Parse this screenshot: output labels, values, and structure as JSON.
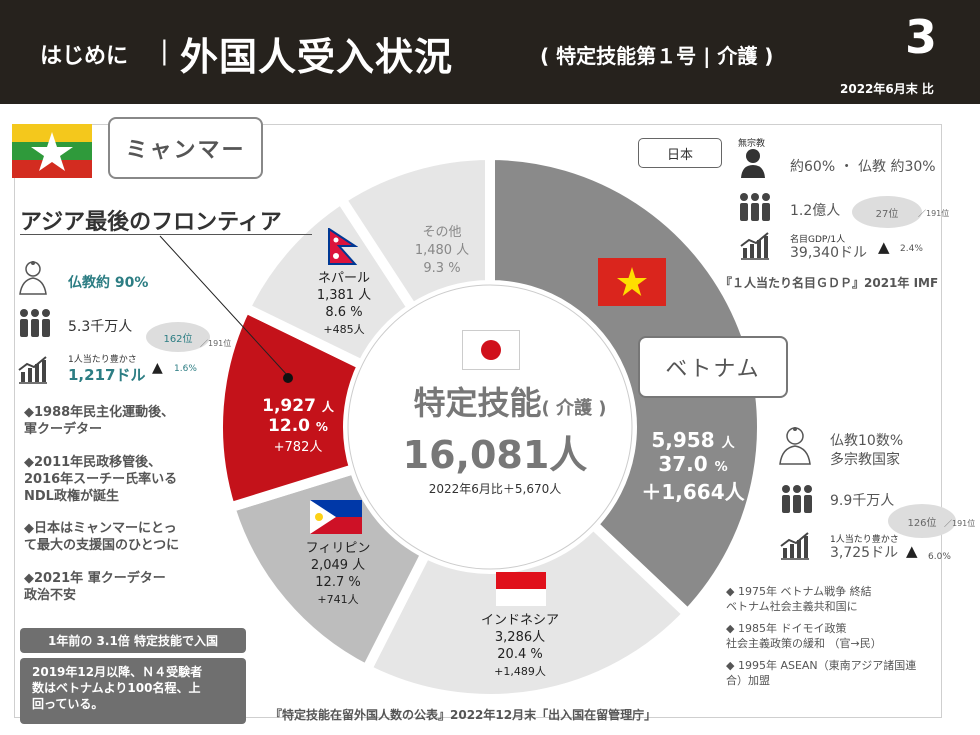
{
  "header": {
    "intro": "はじめに",
    "bar": "|",
    "title": "外国人受入状況",
    "subtitle": "( 特定技能第１号 | 介護 )",
    "page_number": "3",
    "date": "2022年6月末 比"
  },
  "myanmar": {
    "label": "ミャンマー",
    "frontier": "アジア最後のフロンティア",
    "religion": "仏教約 90%",
    "population": "5.3千万人",
    "gdp_label": "1人当たり豊かさ",
    "gdp_value": "1,217ドル",
    "rank": "162位",
    "rank_total": "／191位",
    "growth": "1.6%",
    "bullets": [
      "◆1988年民主化運動後、",
      "軍クーデター",
      "◆2011年民政移管後、",
      "2016年スーチー氏率いる",
      "NDL政権が誕生",
      "◆日本はミャンマーにとっ",
      "て最大の支援国のひとつに",
      "◆2021年 軍クーデター",
      "政治不安"
    ],
    "note1": "1年前の 3.1倍 特定技能で入国",
    "note2_l1": "2019年12月以降、Ｎ４受験者",
    "note2_l2": "数はベトナムより100名程、上",
    "note2_l3": "回っている。"
  },
  "center": {
    "title": "特定技能",
    "title_suffix": "( 介護 )",
    "total": "16,081人",
    "change": "2022年6月比＋5,670人"
  },
  "japan": {
    "label": "日本",
    "religion_head": "無宗教",
    "religion": "約60% ・ 仏教 約30%",
    "population": "1.2億人",
    "rank": "27位",
    "rank_total": "／191位",
    "gdp_label": "名目GDP/1人",
    "gdp_value": "39,340ドル",
    "growth": "2.4%",
    "source": "『１人当たり名目ＧＤＰ』2021年 IMF"
  },
  "vietnam": {
    "label": "ベトナム",
    "religion_l1": "仏教10数%",
    "religion_l2": "多宗教国家",
    "population": "9.9千万人",
    "rank": "126位",
    "rank_total": "／191位",
    "gdp_label": "1人当たり豊かさ",
    "gdp_value": "3,725ドル",
    "growth": "6.0%",
    "bullets": [
      "◆ 1975年 ベトナム戦争 終結",
      "ベトナム社会主義共和国に",
      "◆ 1985年 ドイモイ政策",
      "社会主義政策の緩和 （官→民）",
      "◆ 1995年 ASEAN（東南アジア諸国連",
      "合）加盟"
    ]
  },
  "source": "『特定技能在留外国人数の公表』2022年12月末「出入国在留管理庁」",
  "chart_data": {
    "type": "pie",
    "categories": [
      "ベトナム",
      "インドネシア",
      "フィリピン",
      "ミャンマー",
      "ネパール",
      "その他"
    ],
    "values": [
      5958,
      3286,
      2049,
      1927,
      1381,
      1480
    ],
    "percents": [
      37.0,
      20.4,
      12.7,
      12.0,
      8.6,
      9.3
    ],
    "changes": [
      "+1,664人",
      "+1,489人",
      "+741人",
      "+782人",
      "+485人",
      ""
    ],
    "colors": [
      "#8a8a8a",
      "#e6e6e6",
      "#bdbdbd",
      "#c4121a",
      "#e6e6e6",
      "#e6e6e6"
    ]
  },
  "labels": {
    "vietnam": {
      "value": "5,958",
      "unit": "人",
      "pct": "37.0",
      "pct_unit": "%",
      "chg": "＋1,664人"
    },
    "indonesia": {
      "name": "インドネシア",
      "value": "3,286人",
      "pct": "20.4 %",
      "chg": "+1,489人"
    },
    "philippines": {
      "name": "フィリピン",
      "value": "2,049 人",
      "pct": "12.7 %",
      "chg": "+741人"
    },
    "myanmar": {
      "value": "1,927",
      "unit": "人",
      "pct": "12.0",
      "pct_unit": "%",
      "chg": "+782人"
    },
    "nepal": {
      "name": "ネパール",
      "value": "1,381 人",
      "pct": "8.6 %",
      "chg": "+485人"
    },
    "other": {
      "name": "その他",
      "value": "1,480 人",
      "pct": "9.3 %"
    }
  }
}
